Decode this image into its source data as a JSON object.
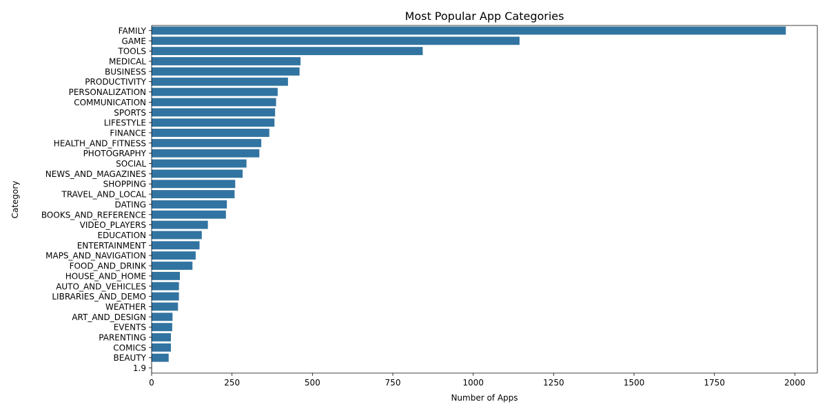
{
  "chart_data": {
    "type": "bar",
    "orientation": "horizontal",
    "title": "Most Popular App Categories",
    "xlabel": "Number of Apps",
    "ylabel": "Category",
    "xlim": [
      0,
      2070
    ],
    "xticks": [
      0,
      250,
      500,
      750,
      1000,
      1250,
      1500,
      1750,
      2000
    ],
    "grid": false,
    "bar_color": "#3274a1",
    "categories": [
      "FAMILY",
      "GAME",
      "TOOLS",
      "MEDICAL",
      "BUSINESS",
      "PRODUCTIVITY",
      "PERSONALIZATION",
      "COMMUNICATION",
      "SPORTS",
      "LIFESTYLE",
      "FINANCE",
      "HEALTH_AND_FITNESS",
      "PHOTOGRAPHY",
      "SOCIAL",
      "NEWS_AND_MAGAZINES",
      "SHOPPING",
      "TRAVEL_AND_LOCAL",
      "DATING",
      "BOOKS_AND_REFERENCE",
      "VIDEO_PLAYERS",
      "EDUCATION",
      "ENTERTAINMENT",
      "MAPS_AND_NAVIGATION",
      "FOOD_AND_DRINK",
      "HOUSE_AND_HOME",
      "AUTO_AND_VEHICLES",
      "LIBRARIES_AND_DEMO",
      "WEATHER",
      "ART_AND_DESIGN",
      "EVENTS",
      "PARENTING",
      "COMICS",
      "BEAUTY",
      "1.9"
    ],
    "values": [
      1972,
      1144,
      843,
      463,
      460,
      424,
      392,
      387,
      384,
      382,
      366,
      341,
      335,
      295,
      283,
      260,
      258,
      234,
      231,
      175,
      156,
      149,
      137,
      127,
      88,
      85,
      85,
      82,
      65,
      64,
      60,
      60,
      53,
      1
    ]
  }
}
